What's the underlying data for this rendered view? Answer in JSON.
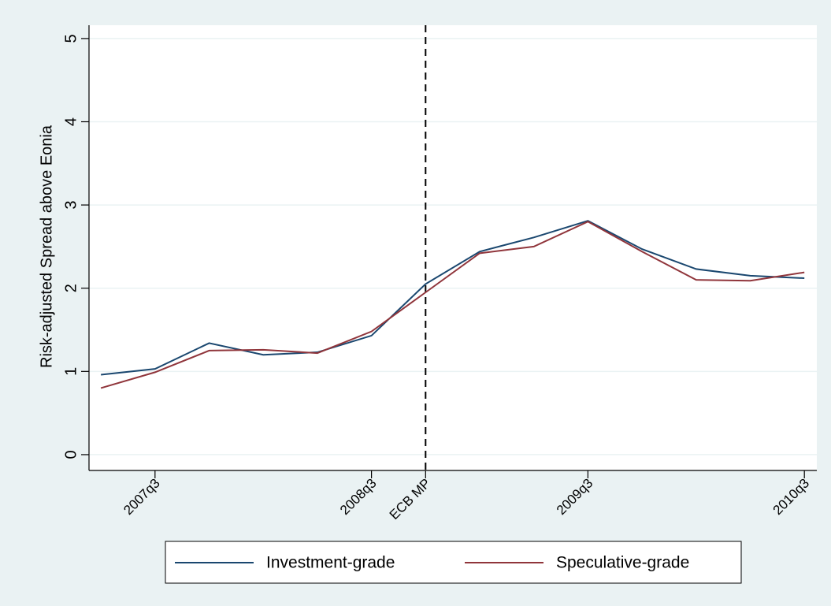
{
  "chart_data": {
    "type": "line",
    "y_label": "Risk-adjusted Spread above Eonia",
    "x": [
      189,
      190,
      191,
      192,
      193,
      194,
      195,
      196,
      197,
      198,
      199,
      200,
      201,
      202
    ],
    "series": [
      {
        "name": "Investment-grade",
        "color": "#1a476f",
        "values": [
          0.96,
          1.03,
          1.34,
          1.2,
          1.23,
          1.43,
          2.05,
          2.44,
          2.61,
          2.81,
          2.47,
          2.23,
          2.15,
          2.12
        ]
      },
      {
        "name": "Speculative-grade",
        "color": "#90353b",
        "values": [
          0.8,
          0.99,
          1.25,
          1.26,
          1.22,
          1.48,
          1.95,
          2.42,
          2.5,
          2.8,
          2.44,
          2.1,
          2.09,
          2.19
        ]
      }
    ],
    "xlim": [
      188.78,
      202.23
    ],
    "xticks": [
      {
        "value": 190,
        "label": "2007q3"
      },
      {
        "value": 194,
        "label": "2008q3"
      },
      {
        "value": 198,
        "label": "2009q3"
      },
      {
        "value": 202,
        "label": "2010q3"
      }
    ],
    "xline": {
      "value": 195,
      "label": "ECB MP"
    },
    "ylim": [
      -0.19,
      5.16
    ],
    "yticks": [
      0,
      1,
      2,
      3,
      4,
      5
    ],
    "grid": true,
    "legend": "bottom"
  }
}
